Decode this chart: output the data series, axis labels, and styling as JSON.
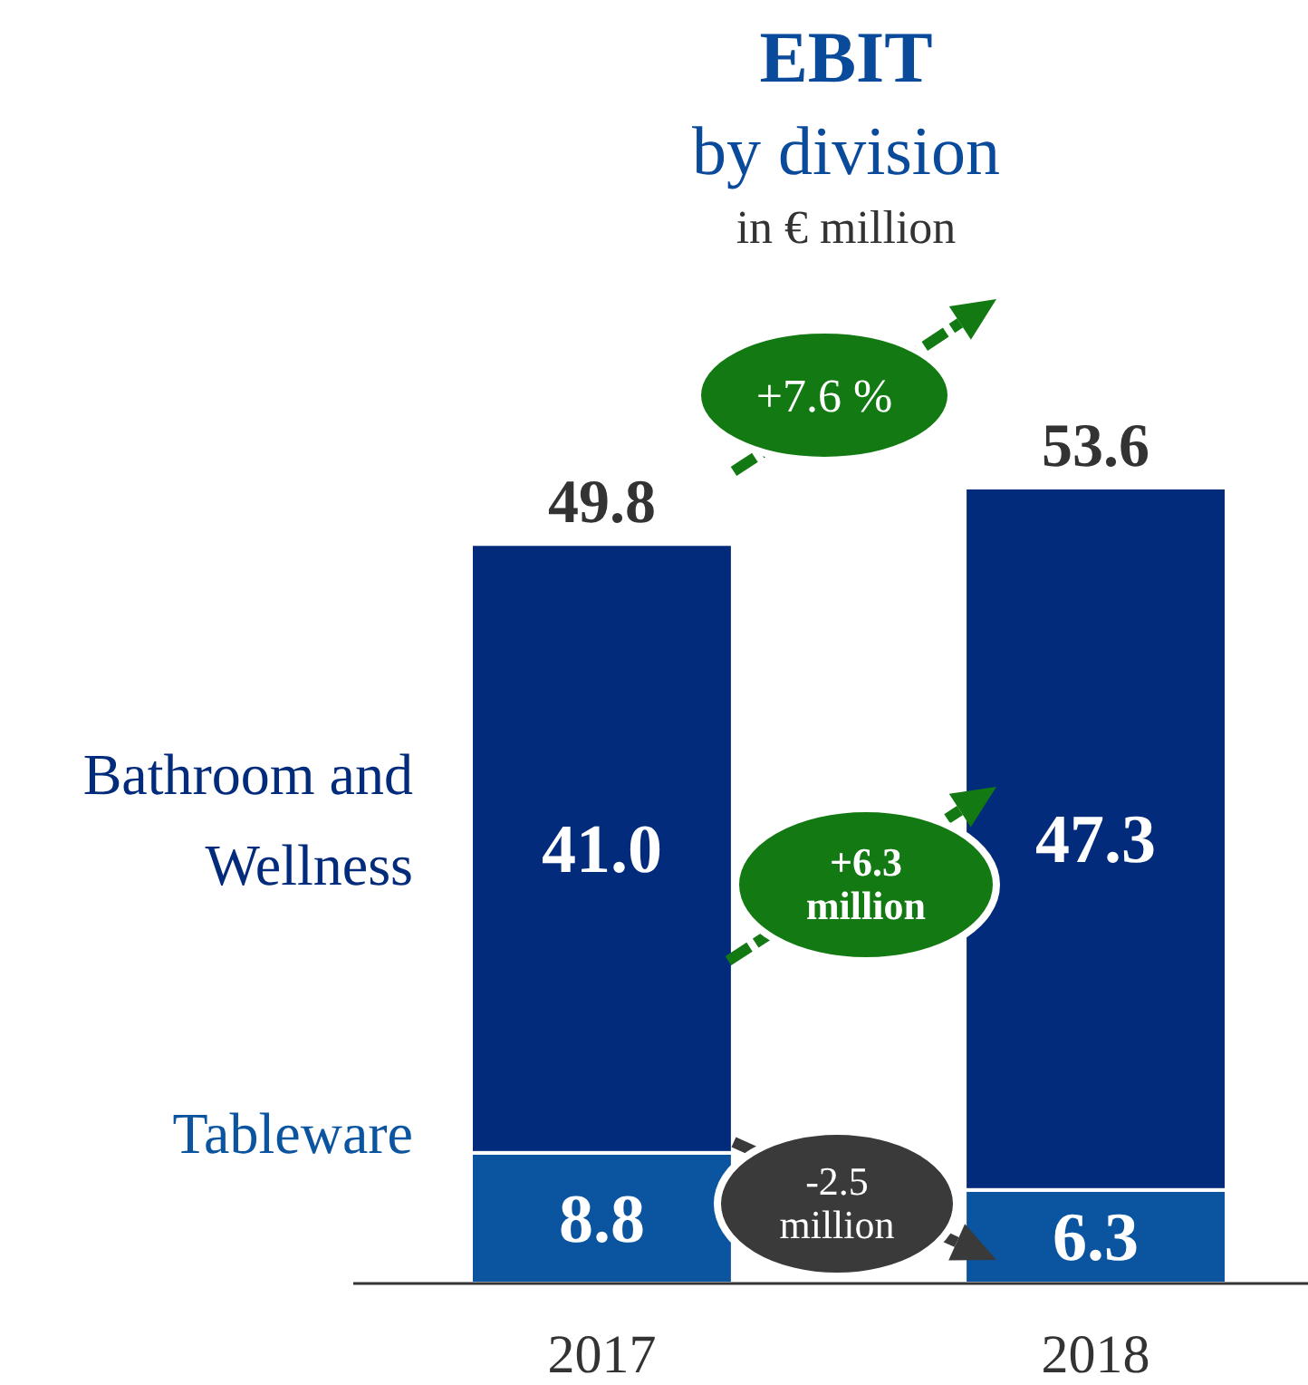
{
  "chart_data": {
    "type": "bar",
    "title": "EBIT",
    "subtitle": "by division",
    "ylabel": "in € million",
    "categories": [
      "2017",
      "2018"
    ],
    "stacked": true,
    "data_labels": true,
    "series": [
      {
        "name": "Tableware",
        "color": "#0b55a0",
        "values": [
          8.8,
          6.3
        ],
        "value_labels": [
          "8.8",
          "6.3"
        ]
      },
      {
        "name": "Bathroom and Wellness",
        "color": "#022b7b",
        "values": [
          41.0,
          47.3
        ],
        "value_labels": [
          "41.0",
          "47.3"
        ]
      }
    ],
    "totals": [
      "49.8",
      "53.6"
    ],
    "annotations": [
      "+7.6 %",
      "+6.3 million",
      "-2.5 million"
    ]
  }
}
